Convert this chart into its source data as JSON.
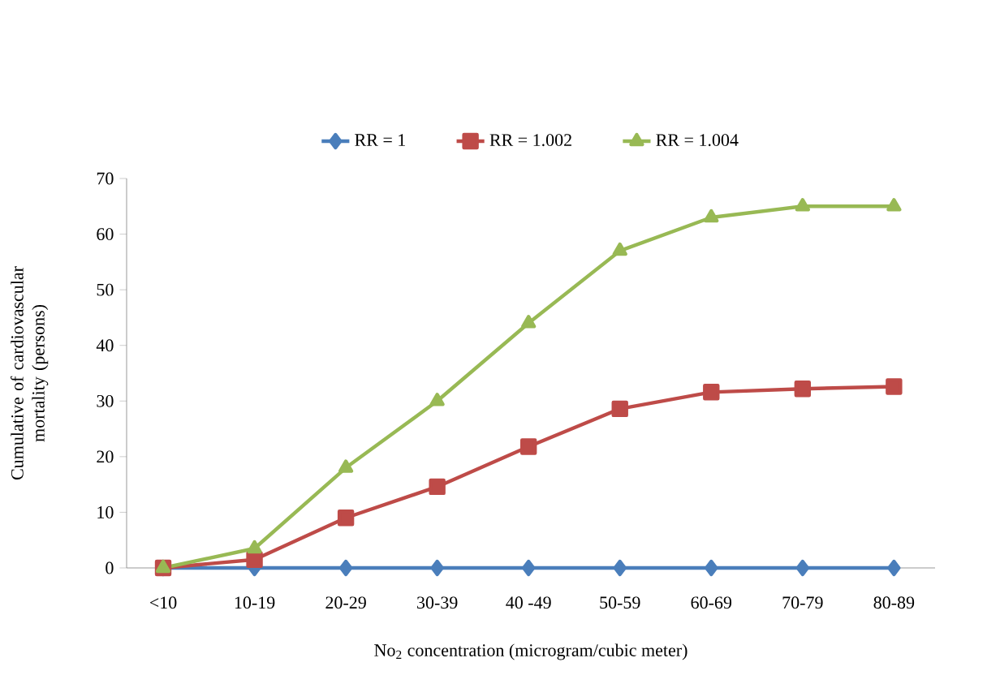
{
  "chart_data": {
    "type": "line",
    "xlabel": "No$_{2}$ concentration (microgram/cubic meter)",
    "ylabel": "Cumulative of cardiovascular mortality (persons)",
    "categories": [
      "<10",
      "10-19",
      "20-29",
      "30-39",
      "40 -49",
      "50-59",
      "60-69",
      "70-79",
      "80-89"
    ],
    "series": [
      {
        "name": "RR = 1",
        "color": "#4a7ebb",
        "marker": "diamond",
        "values": [
          0,
          0,
          0,
          0,
          0,
          0,
          0,
          0,
          0
        ]
      },
      {
        "name": "RR = 1.002",
        "color": "#be4b48",
        "marker": "square",
        "values": [
          0,
          1.5,
          9,
          14.6,
          21.8,
          28.6,
          31.6,
          32.2,
          32.6
        ]
      },
      {
        "name": "RR = 1.004",
        "color": "#98b954",
        "marker": "triangle",
        "values": [
          0,
          3.5,
          18,
          30,
          44,
          57,
          63,
          65,
          65
        ]
      }
    ],
    "ylim": [
      0,
      70
    ],
    "yticks": [
      0,
      10,
      20,
      30,
      40,
      50,
      60,
      70
    ],
    "grid": false,
    "legend": "top",
    "line_style": "solid"
  }
}
